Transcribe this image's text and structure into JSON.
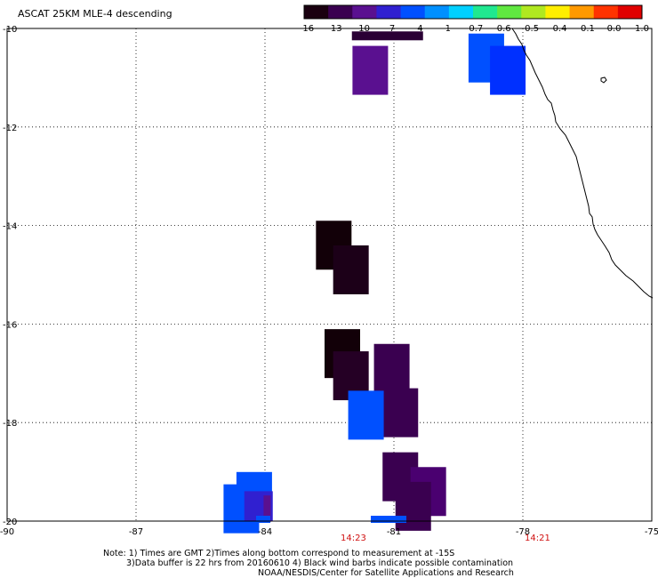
{
  "title": "ASCAT 25KM MLE-4 descending",
  "colorbar": {
    "ticks": [
      "-16",
      "-13",
      "-10",
      "-7",
      "-4",
      "-1",
      "-0.7",
      "-0.6",
      "-0.5",
      "-0.4",
      "-0.1",
      "0.0",
      "1.0"
    ],
    "colors": [
      "#1a0010",
      "#3a0050",
      "#5a1090",
      "#3020d0",
      "#0050ff",
      "#0090ff",
      "#00d0ff",
      "#20e890",
      "#60e840",
      "#b0e820",
      "#ffee00",
      "#ff9900",
      "#ff3300",
      "#e00000"
    ]
  },
  "axes": {
    "lon_ticks": [
      "-90",
      "-87",
      "-84",
      "-81",
      "-78",
      "-75"
    ],
    "lat_ticks": [
      "-10",
      "-12",
      "-14",
      "-16",
      "-18",
      "-20"
    ],
    "grid": "dotted"
  },
  "times": [
    "14:23",
    "14:21"
  ],
  "notes": [
    "Note: 1) Times are GMT 2)Times along bottom correspond to measurement at -15S",
    "3)Data buffer is 22 hrs from 20160610 4) Black wind barbs indicate possible contamination",
    "NOAA/NESDIS/Center for Satellite Applications and Research"
  ],
  "cells": [
    {
      "lon": -81.15,
      "lat": -10.15,
      "color": "#2a0035"
    },
    {
      "lon": -81.55,
      "lat": -10.85,
      "color": "#5a1090"
    },
    {
      "lon": -78.85,
      "lat": -10.6,
      "color": "#0050ff"
    },
    {
      "lon": -78.35,
      "lat": -10.85,
      "color": "#0030ff"
    },
    {
      "lon": -82.4,
      "lat": -14.4,
      "color": "#120008"
    },
    {
      "lon": -82.0,
      "lat": -14.9,
      "color": "#1c0018"
    },
    {
      "lon": -82.2,
      "lat": -16.6,
      "color": "#120008"
    },
    {
      "lon": -81.05,
      "lat": -16.9,
      "color": "#3a0050"
    },
    {
      "lon": -82.0,
      "lat": -17.05,
      "color": "#250025"
    },
    {
      "lon": -80.85,
      "lat": -17.8,
      "color": "#3a0050"
    },
    {
      "lon": -81.65,
      "lat": -17.85,
      "color": "#0050ff"
    },
    {
      "lon": -80.85,
      "lat": -19.1,
      "color": "#3a0050"
    },
    {
      "lon": -80.2,
      "lat": -19.4,
      "color": "#4a0070"
    },
    {
      "lon": -80.55,
      "lat": -19.7,
      "color": "#3a0050"
    },
    {
      "lon": -84.25,
      "lat": -19.5,
      "color": "#0050ff"
    },
    {
      "lon": -84.55,
      "lat": -19.75,
      "color": "#0050ff"
    },
    {
      "lon": -84.15,
      "lat": -19.7,
      "color": "#3020d0"
    },
    {
      "lon": -83.95,
      "lat": -19.75,
      "color": "#5a1090"
    }
  ]
}
